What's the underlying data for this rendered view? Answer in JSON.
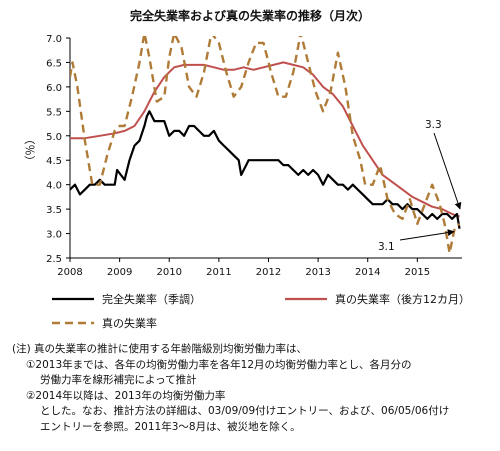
{
  "chart_data": {
    "type": "line",
    "title": "完全失業率および真の失業率の推移（月次）",
    "ylabel": "（％）",
    "xlabel": "",
    "ylim": [
      2.5,
      7.0
    ],
    "y_ticks": [
      "2.5",
      "3.0",
      "3.5",
      "4.0",
      "4.5",
      "5.0",
      "5.5",
      "6.0",
      "6.5",
      "7.0"
    ],
    "x_ticks": [
      "2008",
      "2009",
      "2010",
      "2011",
      "2012",
      "2013",
      "2014",
      "2015"
    ],
    "xlim": [
      2008.0,
      2015.9
    ],
    "grid": false,
    "legend_position": "bottom",
    "series": [
      {
        "name": "完全失業率（季調）",
        "color": "#000000",
        "style": "solid",
        "points": [
          [
            2008.0,
            3.9
          ],
          [
            2008.1,
            4.0
          ],
          [
            2008.2,
            3.8
          ],
          [
            2008.3,
            3.9
          ],
          [
            2008.4,
            4.0
          ],
          [
            2008.5,
            4.0
          ],
          [
            2008.6,
            4.1
          ],
          [
            2008.7,
            4.0
          ],
          [
            2008.8,
            4.0
          ],
          [
            2008.9,
            4.0
          ],
          [
            2008.95,
            4.3
          ],
          [
            2009.1,
            4.1
          ],
          [
            2009.2,
            4.5
          ],
          [
            2009.3,
            4.8
          ],
          [
            2009.4,
            4.9
          ],
          [
            2009.5,
            5.2
          ],
          [
            2009.55,
            5.4
          ],
          [
            2009.6,
            5.5
          ],
          [
            2009.7,
            5.3
          ],
          [
            2009.8,
            5.3
          ],
          [
            2009.9,
            5.3
          ],
          [
            2010.0,
            5.0
          ],
          [
            2010.1,
            5.1
          ],
          [
            2010.2,
            5.1
          ],
          [
            2010.3,
            5.0
          ],
          [
            2010.4,
            5.2
          ],
          [
            2010.5,
            5.2
          ],
          [
            2010.6,
            5.1
          ],
          [
            2010.7,
            5.0
          ],
          [
            2010.8,
            5.0
          ],
          [
            2010.9,
            5.1
          ],
          [
            2011.0,
            4.9
          ],
          [
            2011.1,
            4.8
          ],
          [
            2011.2,
            4.7
          ],
          [
            2011.3,
            4.6
          ],
          [
            2011.4,
            4.5
          ],
          [
            2011.45,
            4.2
          ],
          [
            2011.5,
            4.3
          ],
          [
            2011.55,
            4.4
          ],
          [
            2011.6,
            4.5
          ],
          [
            2011.7,
            4.5
          ],
          [
            2011.8,
            4.5
          ],
          [
            2011.9,
            4.5
          ],
          [
            2012.0,
            4.5
          ],
          [
            2012.1,
            4.5
          ],
          [
            2012.2,
            4.5
          ],
          [
            2012.3,
            4.4
          ],
          [
            2012.4,
            4.4
          ],
          [
            2012.5,
            4.3
          ],
          [
            2012.6,
            4.2
          ],
          [
            2012.7,
            4.3
          ],
          [
            2012.8,
            4.2
          ],
          [
            2012.9,
            4.3
          ],
          [
            2013.0,
            4.2
          ],
          [
            2013.1,
            4.0
          ],
          [
            2013.2,
            4.2
          ],
          [
            2013.3,
            4.1
          ],
          [
            2013.4,
            4.0
          ],
          [
            2013.5,
            4.0
          ],
          [
            2013.6,
            3.9
          ],
          [
            2013.7,
            4.0
          ],
          [
            2013.8,
            3.9
          ],
          [
            2013.9,
            3.8
          ],
          [
            2014.0,
            3.7
          ],
          [
            2014.1,
            3.6
          ],
          [
            2014.2,
            3.6
          ],
          [
            2014.3,
            3.6
          ],
          [
            2014.4,
            3.7
          ],
          [
            2014.5,
            3.6
          ],
          [
            2014.6,
            3.6
          ],
          [
            2014.7,
            3.5
          ],
          [
            2014.8,
            3.6
          ],
          [
            2014.9,
            3.5
          ],
          [
            2015.0,
            3.5
          ],
          [
            2015.1,
            3.4
          ],
          [
            2015.2,
            3.3
          ],
          [
            2015.3,
            3.4
          ],
          [
            2015.4,
            3.3
          ],
          [
            2015.5,
            3.4
          ],
          [
            2015.6,
            3.4
          ],
          [
            2015.7,
            3.3
          ],
          [
            2015.8,
            3.4
          ],
          [
            2015.85,
            3.1
          ]
        ]
      },
      {
        "name": "真の失業率（後方12カ月）",
        "color": "#c0504d",
        "style": "solid",
        "points": [
          [
            2008.0,
            4.95
          ],
          [
            2008.3,
            4.95
          ],
          [
            2008.6,
            5.0
          ],
          [
            2008.9,
            5.05
          ],
          [
            2009.1,
            5.1
          ],
          [
            2009.3,
            5.2
          ],
          [
            2009.5,
            5.5
          ],
          [
            2009.7,
            5.9
          ],
          [
            2009.9,
            6.2
          ],
          [
            2010.1,
            6.4
          ],
          [
            2010.3,
            6.45
          ],
          [
            2010.5,
            6.45
          ],
          [
            2010.7,
            6.45
          ],
          [
            2010.9,
            6.4
          ],
          [
            2011.1,
            6.35
          ],
          [
            2011.3,
            6.35
          ],
          [
            2011.5,
            6.4
          ],
          [
            2011.7,
            6.35
          ],
          [
            2011.9,
            6.4
          ],
          [
            2012.1,
            6.45
          ],
          [
            2012.3,
            6.5
          ],
          [
            2012.5,
            6.45
          ],
          [
            2012.7,
            6.4
          ],
          [
            2012.9,
            6.25
          ],
          [
            2013.1,
            6.0
          ],
          [
            2013.3,
            5.85
          ],
          [
            2013.5,
            5.6
          ],
          [
            2013.7,
            5.2
          ],
          [
            2013.9,
            4.8
          ],
          [
            2014.1,
            4.5
          ],
          [
            2014.3,
            4.2
          ],
          [
            2014.5,
            4.05
          ],
          [
            2014.7,
            3.9
          ],
          [
            2014.9,
            3.75
          ],
          [
            2015.1,
            3.65
          ],
          [
            2015.3,
            3.55
          ],
          [
            2015.5,
            3.5
          ],
          [
            2015.7,
            3.4
          ],
          [
            2015.85,
            3.35
          ]
        ]
      },
      {
        "name": "真の失業率",
        "color": "#b07b36",
        "style": "dashed",
        "points": [
          [
            2008.0,
            6.2
          ],
          [
            2008.05,
            6.5
          ],
          [
            2008.15,
            6.0
          ],
          [
            2008.3,
            4.9
          ],
          [
            2008.45,
            4.0
          ],
          [
            2008.6,
            4.0
          ],
          [
            2008.75,
            4.6
          ],
          [
            2008.9,
            5.1
          ],
          [
            2009.0,
            5.2
          ],
          [
            2009.1,
            5.2
          ],
          [
            2009.25,
            5.8
          ],
          [
            2009.4,
            6.5
          ],
          [
            2009.5,
            7.1
          ],
          [
            2009.6,
            6.6
          ],
          [
            2009.75,
            5.7
          ],
          [
            2009.9,
            5.8
          ],
          [
            2010.0,
            6.6
          ],
          [
            2010.1,
            7.1
          ],
          [
            2010.25,
            6.8
          ],
          [
            2010.4,
            6.0
          ],
          [
            2010.55,
            5.8
          ],
          [
            2010.7,
            6.3
          ],
          [
            2010.85,
            7.1
          ],
          [
            2011.0,
            6.9
          ],
          [
            2011.15,
            6.3
          ],
          [
            2011.3,
            5.8
          ],
          [
            2011.45,
            6.0
          ],
          [
            2011.6,
            6.5
          ],
          [
            2011.75,
            6.9
          ],
          [
            2011.9,
            6.9
          ],
          [
            2012.05,
            6.3
          ],
          [
            2012.2,
            5.8
          ],
          [
            2012.35,
            5.8
          ],
          [
            2012.5,
            6.3
          ],
          [
            2012.65,
            7.1
          ],
          [
            2012.8,
            6.5
          ],
          [
            2012.95,
            5.9
          ],
          [
            2013.1,
            5.5
          ],
          [
            2013.25,
            5.9
          ],
          [
            2013.4,
            6.7
          ],
          [
            2013.55,
            6.0
          ],
          [
            2013.7,
            5.0
          ],
          [
            2013.85,
            4.5
          ],
          [
            2013.95,
            4.0
          ],
          [
            2014.1,
            4.0
          ],
          [
            2014.25,
            4.4
          ],
          [
            2014.4,
            3.7
          ],
          [
            2014.55,
            3.4
          ],
          [
            2014.7,
            3.3
          ],
          [
            2014.85,
            3.7
          ],
          [
            2015.0,
            3.2
          ],
          [
            2015.15,
            3.6
          ],
          [
            2015.3,
            4.0
          ],
          [
            2015.45,
            3.6
          ],
          [
            2015.55,
            3.2
          ],
          [
            2015.65,
            2.6
          ],
          [
            2015.75,
            3.1
          ],
          [
            2015.85,
            3.2
          ]
        ]
      }
    ],
    "annotations": [
      {
        "text": "3.3",
        "target_x": 2015.82,
        "target_y": 3.38
      },
      {
        "text": "3.1",
        "target_x": 2015.82,
        "target_y": 3.1
      }
    ]
  },
  "notes": [
    "(注) 真の失業率の推計に使用する年齢階級別均衡労働力率は、",
    "①2013年までは、各年の均衡労働力率を各年12月の均衡労働力率とし、各月分の",
    "労働力率を線形補完によって推計",
    "②2014年以降は、2013年の均衡労働力率",
    "とした。なお、推計方法の詳細は、03/09/09付けエントリー、および、06/05/06付け",
    "エントリーを参照。2011年3～8月は、被災地を除く。"
  ]
}
